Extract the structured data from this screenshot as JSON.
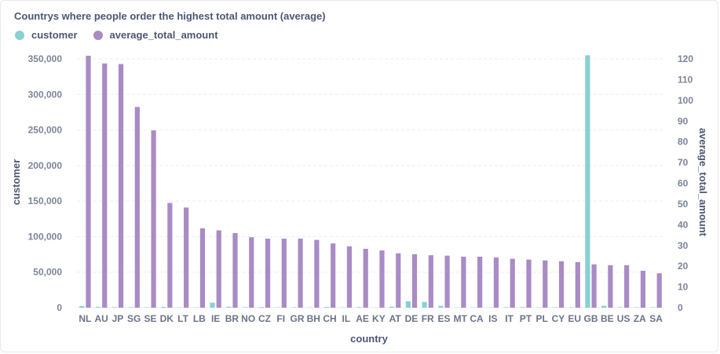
{
  "chart_data": {
    "type": "bar",
    "title": "Countrys where people order the highest total amount (average)",
    "xlabel": "country",
    "ylabel_left": "customer",
    "ylabel_right": "average_total_amount",
    "ylim_left": [
      0,
      350000
    ],
    "ylim_right": [
      0,
      120
    ],
    "left_ticks": [
      "0",
      "50,000",
      "100,000",
      "150,000",
      "200,000",
      "250,000",
      "300,000",
      "350,000"
    ],
    "right_ticks": [
      "0",
      "10",
      "20",
      "30",
      "40",
      "50",
      "60",
      "70",
      "80",
      "90",
      "100",
      "110",
      "120"
    ],
    "grid": true,
    "legend_position": "top-left",
    "categories": [
      "NL",
      "AU",
      "JP",
      "SG",
      "SE",
      "DK",
      "LT",
      "LB",
      "IE",
      "BR",
      "NO",
      "CZ",
      "FI",
      "GR",
      "BH",
      "CH",
      "IL",
      "AE",
      "KY",
      "AT",
      "DE",
      "FR",
      "ES",
      "MT",
      "CA",
      "IS",
      "IT",
      "PT",
      "PL",
      "CY",
      "EU",
      "GB",
      "BE",
      "US",
      "ZA",
      "SA"
    ],
    "series": [
      {
        "name": "customer",
        "axis": "left",
        "color": "#88d0d4",
        "values": [
          2300,
          1200,
          800,
          700,
          600,
          1100,
          500,
          400,
          7000,
          1300,
          700,
          900,
          500,
          600,
          300,
          1000,
          300,
          800,
          200,
          1400,
          9000,
          8000,
          2500,
          300,
          400,
          300,
          700,
          800,
          400,
          600,
          500,
          355000,
          2800,
          700,
          600,
          500
        ]
      },
      {
        "name": "average_total_amount",
        "axis": "right",
        "color": "#a98bc5",
        "values": [
          121.5,
          117.8,
          117.5,
          96.8,
          85.5,
          50.5,
          48.3,
          38.3,
          37.3,
          36,
          34,
          33.3,
          33.3,
          33.3,
          32.7,
          31,
          29.6,
          28.4,
          27.6,
          26.2,
          25.8,
          25.3,
          25.1,
          24.6,
          24.6,
          24.2,
          23.6,
          23.2,
          22.8,
          22.4,
          22,
          20.9,
          20.5,
          20.5,
          17.8,
          16.6
        ]
      }
    ]
  }
}
